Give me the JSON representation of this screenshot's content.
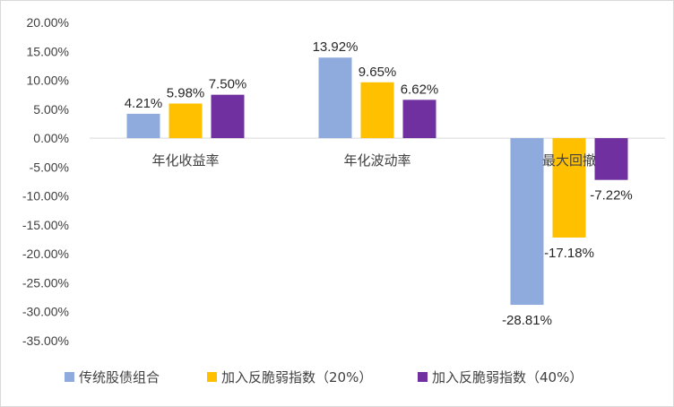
{
  "chart_data": {
    "type": "bar",
    "categories": [
      "年化收益率",
      "年化波动率",
      "最大回撤"
    ],
    "series": [
      {
        "name": "传统股债组合",
        "values": [
          4.21,
          13.92,
          -28.81
        ],
        "color": "#8faadc",
        "labels": [
          "4.21%",
          "13.92%",
          "-28.81%"
        ]
      },
      {
        "name": "加入反脆弱指数（20%）",
        "values": [
          5.98,
          9.65,
          -17.18
        ],
        "color": "#ffc000",
        "labels": [
          "5.98%",
          "9.65%",
          "-17.18%"
        ]
      },
      {
        "name": "加入反脆弱指数（40%）",
        "values": [
          7.5,
          6.62,
          -7.22
        ],
        "color": "#7030a0",
        "labels": [
          "7.50%",
          "6.62%",
          "-7.22%"
        ]
      }
    ],
    "ylim": [
      -35,
      20
    ],
    "yticks": [
      20,
      15,
      10,
      5,
      0,
      -5,
      -10,
      -15,
      -20,
      -25,
      -30,
      -35
    ],
    "ytick_labels": [
      "20.00%",
      "15.00%",
      "10.00%",
      "5.00%",
      "0.00%",
      "-5.00%",
      "-10.00%",
      "-15.00%",
      "-20.00%",
      "-25.00%",
      "-30.00%",
      "-35.00%"
    ],
    "grid": false,
    "legend": "bottom"
  }
}
